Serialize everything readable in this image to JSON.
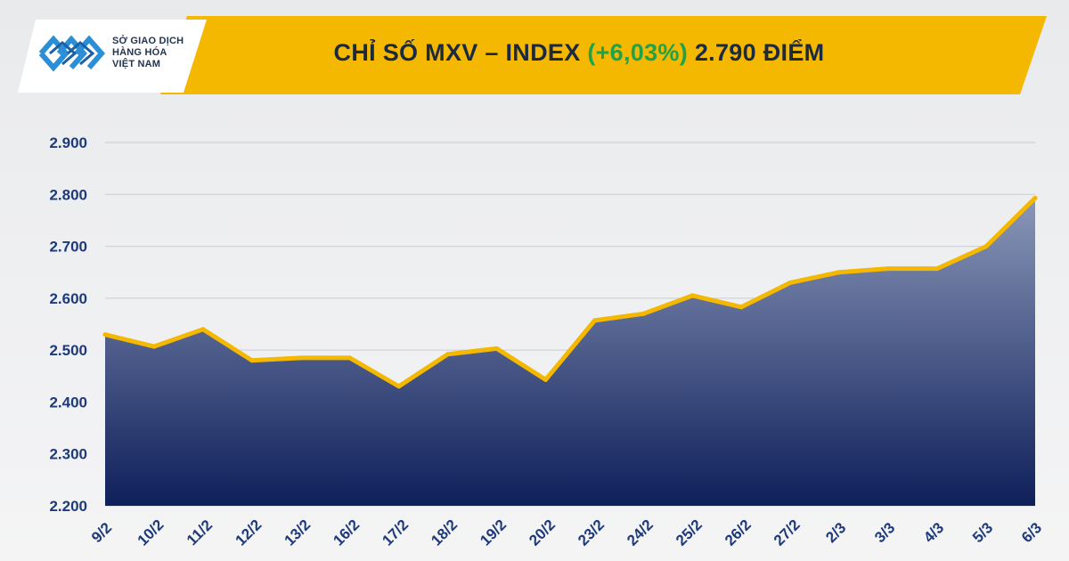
{
  "header": {
    "logo_lines": [
      "SỞ GIAO DỊCH",
      "HÀNG HÓA",
      "VIỆT NAM"
    ],
    "title_prefix": "CHỈ SỐ MXV – INDEX",
    "title_change": "(+6,03%)",
    "title_suffix": "2.790 ĐIỂM",
    "accent_color": "#f5b800",
    "change_color": "#1fa34a"
  },
  "chart_data": {
    "type": "area",
    "title": "CHỈ SỐ MXV – INDEX (+6,03%) 2.790 ĐIỂM",
    "xlabel": "",
    "ylabel": "",
    "categories": [
      "9/2",
      "10/2",
      "11/2",
      "12/2",
      "13/2",
      "16/2",
      "17/2",
      "18/2",
      "19/2",
      "20/2",
      "23/2",
      "24/2",
      "25/2",
      "26/2",
      "27/2",
      "2/3",
      "3/3",
      "4/3",
      "5/3",
      "6/3"
    ],
    "values": [
      2530,
      2507,
      2540,
      2480,
      2485,
      2485,
      2430,
      2492,
      2503,
      2443,
      2557,
      2570,
      2605,
      2583,
      2630,
      2650,
      2657,
      2657,
      2700,
      2793
    ],
    "ylim": [
      2200,
      2900
    ],
    "yticks": [
      2200,
      2300,
      2400,
      2500,
      2600,
      2700,
      2800,
      2900
    ],
    "ytick_labels": [
      "2.200",
      "2.300",
      "2.400",
      "2.500",
      "2.600",
      "2.700",
      "2.800",
      "2.900"
    ],
    "grid": true,
    "line_color": "#f5b800",
    "fill_top_color": "#8a97b8",
    "fill_bottom_color": "#0e1f5a",
    "tick_label_color": "#1e3a7a"
  }
}
